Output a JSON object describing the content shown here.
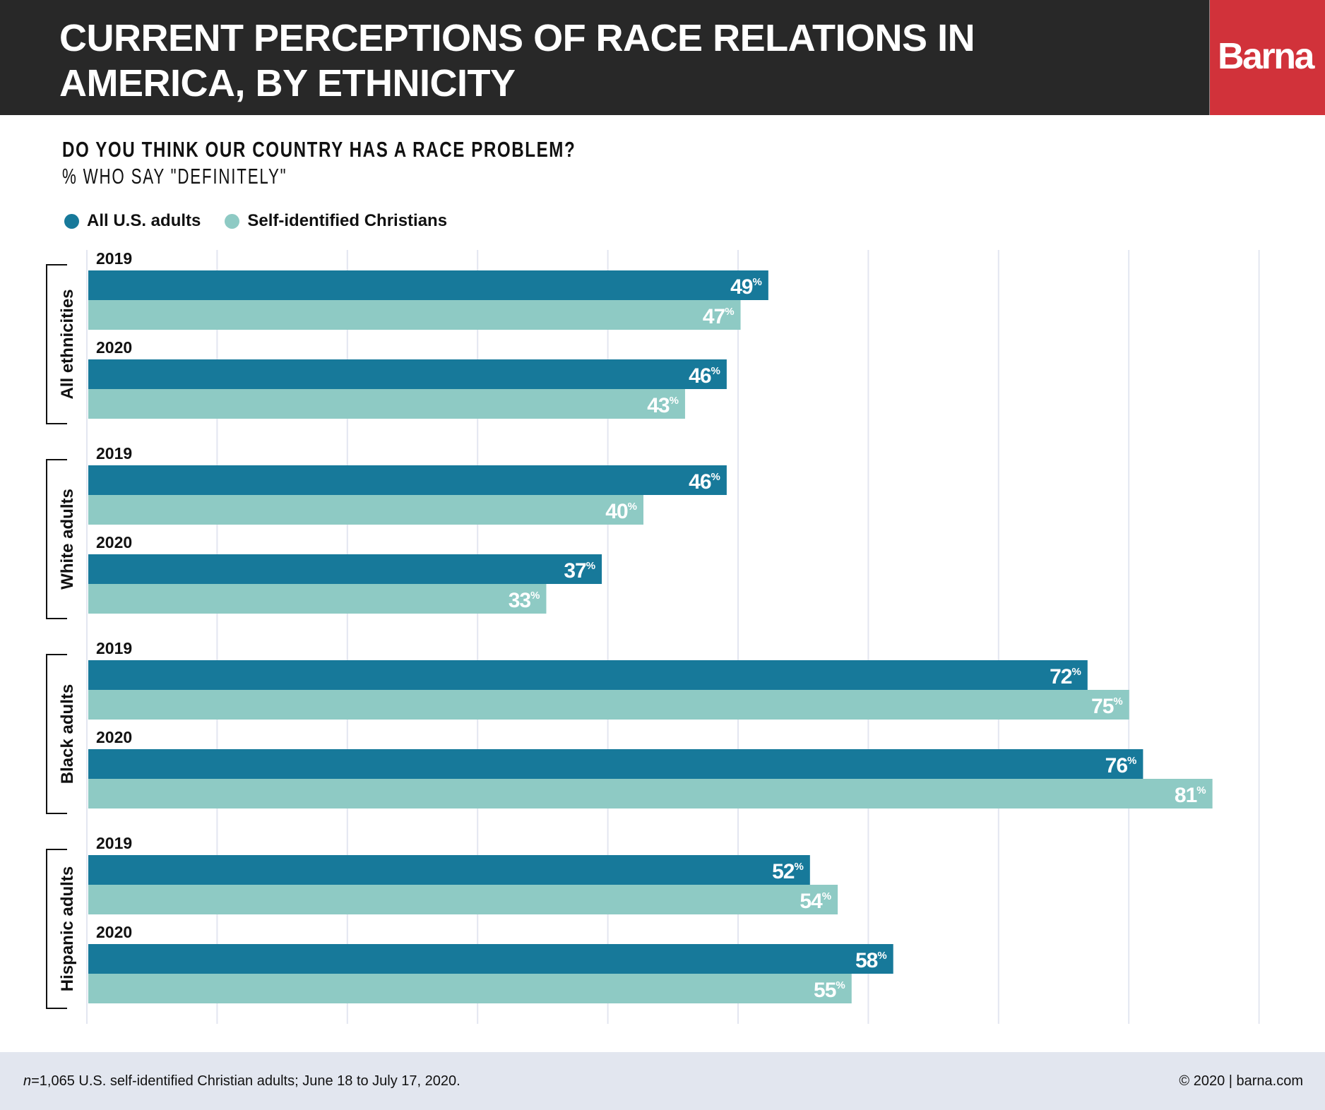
{
  "header": {
    "title_line1": "CURRENT PERCEPTIONS OF RACE RELATIONS IN",
    "title_line2": "AMERICA, BY ETHNICITY",
    "logo": "Barna"
  },
  "colors": {
    "all_us_adults": "#17799a",
    "self_identified_christians": "#8ecac4",
    "header_bg": "#282828",
    "logo_bg": "#d1323a",
    "footer_bg": "#e2e6ef",
    "gridline": "#e3e6f0"
  },
  "footer": {
    "note_n": "n",
    "note_rest": "=1,065 U.S. self-identified Christian adults; June 18 to July 17, 2020.",
    "copyright": "© 2020 | barna.com"
  },
  "chart_data": {
    "type": "bar",
    "orientation": "horizontal",
    "title": "DO YOU THINK OUR COUNTRY HAS A RACE PROBLEM?",
    "subtitle": "% WHO SAY \"DEFINITELY\"",
    "xlabel": "",
    "ylabel": "",
    "value_suffix": "%",
    "grid": true,
    "legend_position": "top-left",
    "legend": [
      "All U.S. adults",
      "Self-identified Christians"
    ],
    "groups": [
      {
        "name": "All ethnicities",
        "years": [
          {
            "year": "2019",
            "values": [
              49,
              47
            ]
          },
          {
            "year": "2020",
            "values": [
              46,
              43
            ]
          }
        ]
      },
      {
        "name": "White adults",
        "years": [
          {
            "year": "2019",
            "values": [
              46,
              40
            ]
          },
          {
            "year": "2020",
            "values": [
              37,
              33
            ]
          }
        ]
      },
      {
        "name": "Black adults",
        "years": [
          {
            "year": "2019",
            "values": [
              72,
              75
            ]
          },
          {
            "year": "2020",
            "values": [
              76,
              81
            ]
          }
        ]
      },
      {
        "name": "Hispanic adults",
        "years": [
          {
            "year": "2019",
            "values": [
              52,
              54
            ]
          },
          {
            "year": "2020",
            "values": [
              58,
              55
            ]
          }
        ]
      }
    ],
    "series": [
      {
        "name": "All U.S. adults",
        "values": [
          49,
          46,
          46,
          37,
          72,
          76,
          52,
          58
        ]
      },
      {
        "name": "Self-identified Christians",
        "values": [
          47,
          43,
          40,
          33,
          75,
          81,
          54,
          55
        ]
      }
    ],
    "categories": [
      "All ethnicities 2019",
      "All ethnicities 2020",
      "White adults 2019",
      "White adults 2020",
      "Black adults 2019",
      "Black adults 2020",
      "Hispanic adults 2019",
      "Hispanic adults 2020"
    ]
  }
}
